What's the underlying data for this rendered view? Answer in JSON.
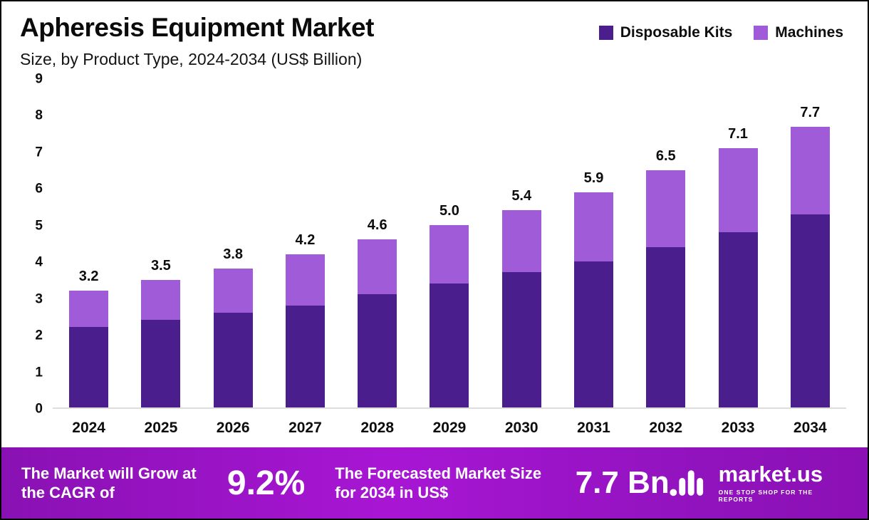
{
  "header": {
    "title": "Apheresis Equipment Market",
    "subtitle": "Size, by Product Type, 2024-2034 (US$ Billion)"
  },
  "chart_data": {
    "type": "bar",
    "stacked": true,
    "title": "Apheresis Equipment Market Size, by Product Type, 2024-2034 (US$ Billion)",
    "categories": [
      "2024",
      "2025",
      "2026",
      "2027",
      "2028",
      "2029",
      "2030",
      "2031",
      "2032",
      "2033",
      "2034"
    ],
    "series": [
      {
        "name": "Disposable Kits",
        "color": "#4a1e8c",
        "values": [
          2.2,
          2.4,
          2.6,
          2.8,
          3.1,
          3.4,
          3.7,
          4.0,
          4.4,
          4.8,
          5.3
        ]
      },
      {
        "name": "Machines",
        "color": "#a05cd8",
        "values": [
          1.0,
          1.1,
          1.2,
          1.4,
          1.5,
          1.6,
          1.7,
          1.9,
          2.1,
          2.3,
          2.4
        ]
      }
    ],
    "totals": [
      3.2,
      3.5,
      3.8,
      4.2,
      4.6,
      5.0,
      5.4,
      5.9,
      6.5,
      7.1,
      7.7
    ],
    "total_labels": [
      "3.2",
      "3.5",
      "3.8",
      "4.2",
      "4.6",
      "5.0",
      "5.4",
      "5.9",
      "6.5",
      "7.1",
      "7.7"
    ],
    "xlabel": "",
    "ylabel": "",
    "ylim": [
      0,
      9
    ],
    "ytick_step": 1,
    "grid": false,
    "legend_position": "top-right"
  },
  "banner": {
    "cagr_label": "The Market will Grow at the CAGR of",
    "cagr_value": "9.2%",
    "forecast_label": "The Forecasted Market Size for 2034 in US$",
    "forecast_value": "7.7 Bn",
    "background_from": "#8911b3",
    "background_to": "#a816d4"
  },
  "brand": {
    "name": "market.us",
    "tagline": "ONE STOP SHOP FOR THE REPORTS"
  }
}
